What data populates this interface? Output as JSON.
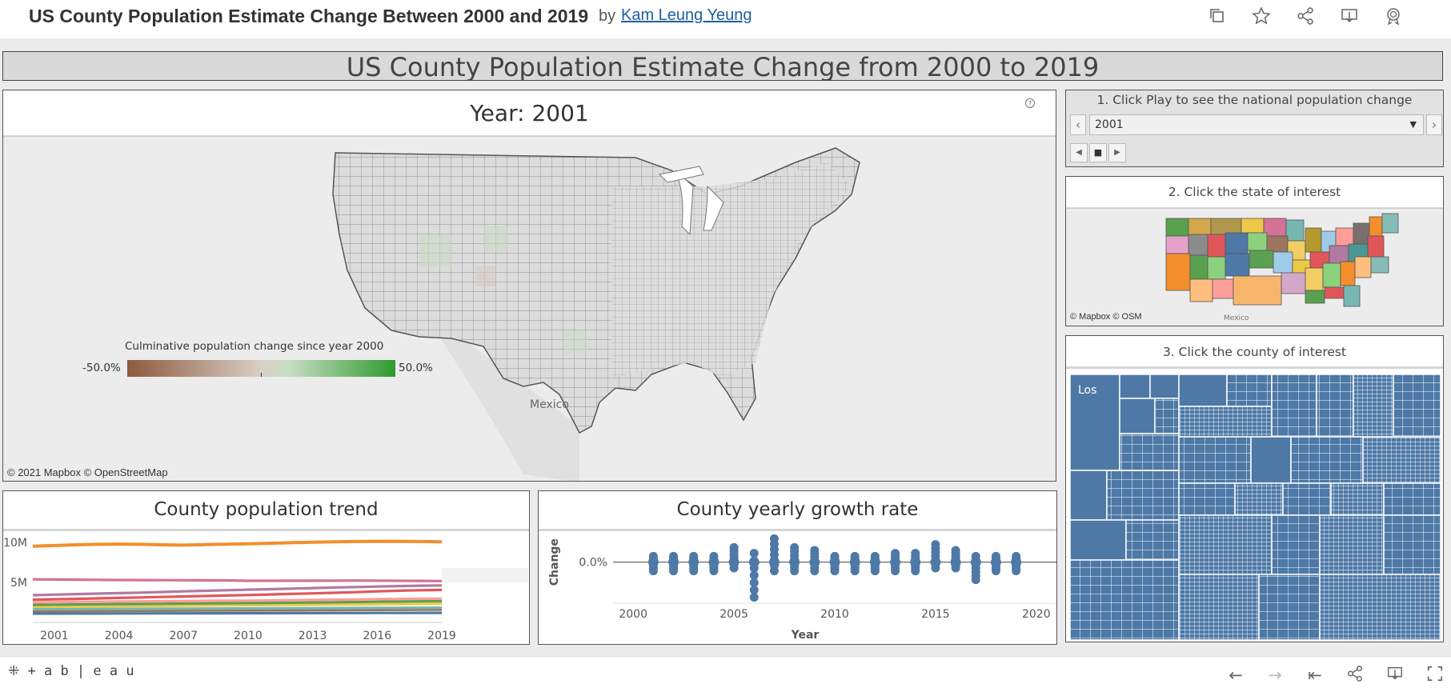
{
  "topbar": {
    "title": "US County Population Estimate Change Between 2000 and 2019",
    "by": "by",
    "author": "Kam Leung Yeung",
    "icons": [
      "copy-icon",
      "star-icon",
      "share-icon",
      "download-icon",
      "badge-icon"
    ]
  },
  "dashboard": {
    "title": "US County Population Estimate Change from 2000 to 2019"
  },
  "map_panel": {
    "title_prefix": "Year:",
    "year": "2001",
    "legend_title": "Culminative population change since year 2000",
    "legend_min": "-50.0%",
    "legend_max": "50.0%",
    "country_label": "Mexico",
    "attribution": "© 2021 Mapbox  © OpenStreetMap",
    "help_icon": "help-icon"
  },
  "controls": {
    "step1": "1. Click Play to see the national population change",
    "selected_year": "2001",
    "step2": "2. Click the  state of interest",
    "step2_attrib": "© Mapbox  © OSM",
    "step2_country": "Mexico",
    "step3": "3. Click the county of interest",
    "treemap_label": "Los"
  },
  "trend_chart": {
    "title": "County population trend",
    "colors": [
      "#f28e2b",
      "#d37295",
      "#b07aa1",
      "#e15759",
      "#ff9d9a",
      "#59a14f",
      "#edc948",
      "#76b7b2",
      "#9c755f",
      "#4e79a7"
    ]
  },
  "growth_chart": {
    "title": "County yearly growth rate",
    "color": "#4e79a7"
  },
  "footer": {
    "brand": "+ a b | e a u"
  },
  "chart_data": [
    {
      "type": "line",
      "title": "County population trend",
      "x": [
        2000,
        2001,
        2002,
        2003,
        2004,
        2005,
        2006,
        2007,
        2008,
        2009,
        2010,
        2011,
        2012,
        2013,
        2014,
        2015,
        2016,
        2017,
        2018,
        2019
      ],
      "x_ticks": [
        "2001",
        "2004",
        "2007",
        "2010",
        "2013",
        "2016",
        "2019"
      ],
      "y_ticks": [
        "10M",
        "5M"
      ],
      "ylim": [
        0,
        11000000
      ],
      "series": [
        {
          "values": [
            9520000,
            9610000,
            9700000,
            9760000,
            9790000,
            9760000,
            9700000,
            9660000,
            9720000,
            9780000,
            9820000,
            9890000,
            9960000,
            10020000,
            10070000,
            10110000,
            10130000,
            10130000,
            10110000,
            10080000
          ]
        },
        {
          "values": [
            5380000,
            5360000,
            5340000,
            5320000,
            5300000,
            5290000,
            5280000,
            5270000,
            5260000,
            5250000,
            5200000,
            5200000,
            5210000,
            5210000,
            5220000,
            5230000,
            5220000,
            5200000,
            5190000,
            5170000
          ]
        },
        {
          "values": [
            3400000,
            3470000,
            3540000,
            3600000,
            3660000,
            3720000,
            3800000,
            3880000,
            3950000,
            4020000,
            4090000,
            4150000,
            4220000,
            4290000,
            4360000,
            4420000,
            4480000,
            4540000,
            4590000,
            4620000
          ]
        },
        {
          "values": [
            2840000,
            2890000,
            2940000,
            3000000,
            3060000,
            3120000,
            3180000,
            3240000,
            3300000,
            3360000,
            3420000,
            3490000,
            3560000,
            3630000,
            3700000,
            3780000,
            3880000,
            3960000,
            4020000,
            4060000
          ]
        },
        {
          "values": [
            2500000,
            2530000,
            2560000,
            2590000,
            2610000,
            2630000,
            2650000,
            2670000,
            2690000,
            2710000,
            2720000,
            2750000,
            2780000,
            2810000,
            2840000,
            2870000,
            2900000,
            2930000,
            2950000,
            2970000
          ]
        },
        {
          "values": [
            2200000,
            2220000,
            2250000,
            2270000,
            2290000,
            2310000,
            2330000,
            2360000,
            2380000,
            2400000,
            2420000,
            2440000,
            2470000,
            2490000,
            2520000,
            2550000,
            2580000,
            2610000,
            2640000,
            2660000
          ]
        },
        {
          "values": [
            1950000,
            1970000,
            1990000,
            2010000,
            2030000,
            2050000,
            2070000,
            2090000,
            2110000,
            2130000,
            2150000,
            2170000,
            2190000,
            2210000,
            2230000,
            2250000,
            2270000,
            2290000,
            2310000,
            2330000
          ]
        },
        {
          "values": [
            1650000,
            1660000,
            1670000,
            1680000,
            1690000,
            1700000,
            1710000,
            1720000,
            1730000,
            1740000,
            1750000,
            1760000,
            1770000,
            1780000,
            1790000,
            1800000,
            1810000,
            1820000,
            1830000,
            1840000
          ]
        },
        {
          "values": [
            1400000,
            1410000,
            1420000,
            1430000,
            1440000,
            1450000,
            1460000,
            1470000,
            1480000,
            1490000,
            1500000,
            1510000,
            1520000,
            1530000,
            1540000,
            1550000,
            1560000,
            1570000,
            1580000,
            1590000
          ]
        },
        {
          "values": [
            1100000,
            1100000,
            1110000,
            1110000,
            1120000,
            1120000,
            1130000,
            1130000,
            1140000,
            1140000,
            1150000,
            1150000,
            1160000,
            1160000,
            1170000,
            1170000,
            1180000,
            1180000,
            1190000,
            1190000
          ]
        }
      ]
    },
    {
      "type": "scatter",
      "title": "County yearly growth rate",
      "xlabel": "Year",
      "ylabel": "Change",
      "x_ticks": [
        "2000",
        "2005",
        "2010",
        "2015",
        "2020"
      ],
      "y_ticks": [
        "0.0%"
      ],
      "xlim": [
        1999,
        2021
      ],
      "ylim": [
        -0.14,
        0.1
      ],
      "years": [
        2001,
        2002,
        2003,
        2004,
        2005,
        2006,
        2007,
        2008,
        2009,
        2010,
        2011,
        2012,
        2013,
        2014,
        2015,
        2016,
        2017,
        2018,
        2019
      ],
      "ranges": [
        [
          -0.03,
          0.02
        ],
        [
          -0.03,
          0.02
        ],
        [
          -0.03,
          0.02
        ],
        [
          -0.03,
          0.02
        ],
        [
          -0.02,
          0.05
        ],
        [
          -0.12,
          0.03
        ],
        [
          -0.03,
          0.08
        ],
        [
          -0.03,
          0.05
        ],
        [
          -0.03,
          0.04
        ],
        [
          -0.03,
          0.02
        ],
        [
          -0.03,
          0.02
        ],
        [
          -0.03,
          0.02
        ],
        [
          -0.03,
          0.03
        ],
        [
          -0.03,
          0.03
        ],
        [
          -0.02,
          0.06
        ],
        [
          -0.02,
          0.04
        ],
        [
          -0.06,
          0.02
        ],
        [
          -0.03,
          0.02
        ],
        [
          -0.03,
          0.02
        ]
      ]
    }
  ]
}
